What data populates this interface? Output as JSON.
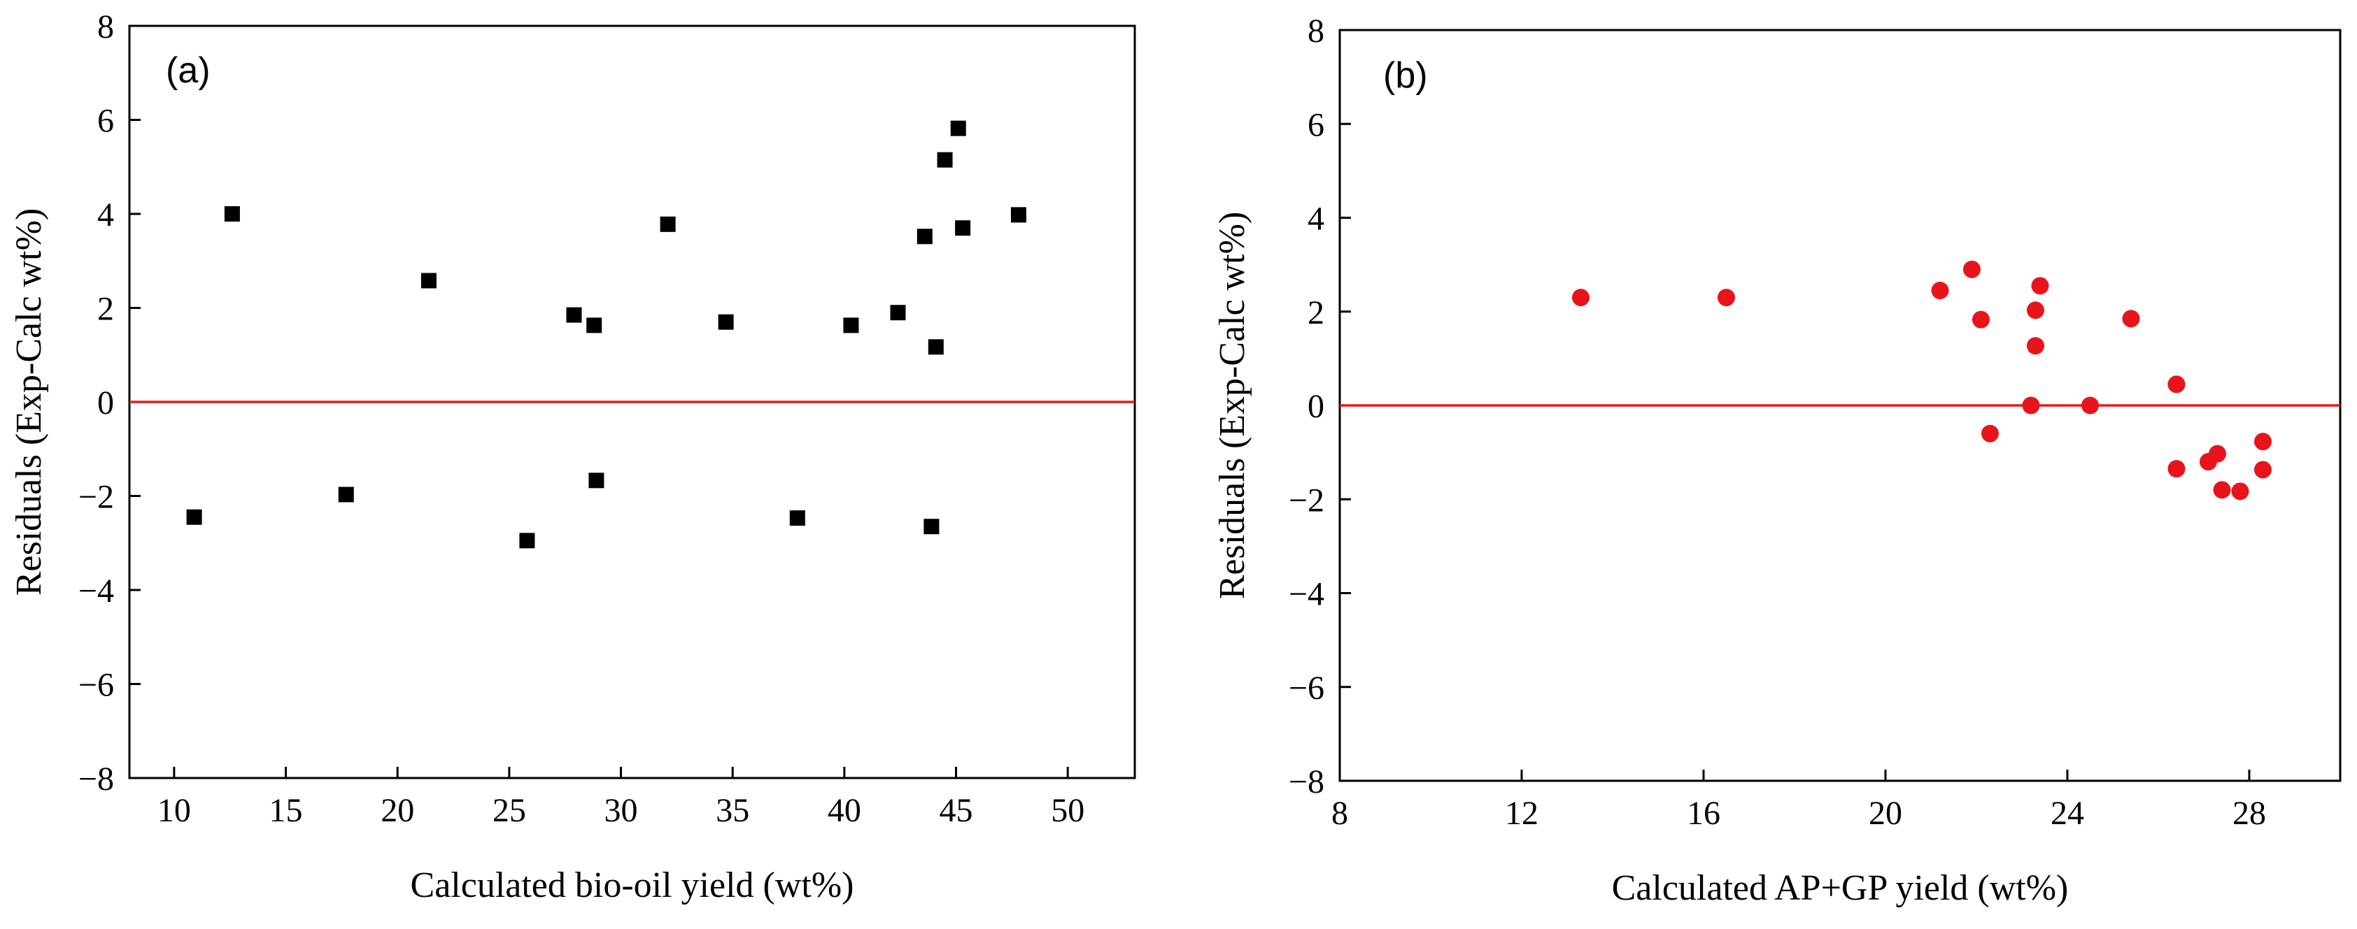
{
  "chart_data": [
    {
      "type": "scatter",
      "panel_label": "(a)",
      "xlabel": "Calculated bio-oil yield  (wt%)",
      "ylabel": "Residuals (Exp-Calc wt%)",
      "xlim": [
        8,
        53
      ],
      "ylim": [
        -8,
        8
      ],
      "xticks": [
        10,
        15,
        20,
        25,
        30,
        35,
        40,
        45,
        50
      ],
      "xtick_labels": [
        "10",
        "15",
        "20",
        "25",
        "30",
        "35",
        "40",
        "45",
        "50"
      ],
      "yticks": [
        -8,
        -6,
        -4,
        -2,
        0,
        2,
        4,
        6,
        8
      ],
      "ytick_labels": [
        "−8",
        "−6",
        "−4",
        "−2",
        "0",
        "2",
        "4",
        "6",
        "8"
      ],
      "reference_line": 0,
      "marker": "square",
      "marker_color": "#000000",
      "line_color": "#e31a1c",
      "x": [
        10.9,
        12.6,
        17.7,
        21.4,
        25.8,
        27.9,
        28.8,
        28.9,
        32.1,
        34.7,
        37.9,
        40.3,
        42.4,
        43.6,
        43.9,
        44.1,
        44.5,
        45.1,
        45.3,
        47.8
      ],
      "y": [
        -2.45,
        4.0,
        -1.97,
        2.58,
        -2.95,
        1.85,
        1.63,
        -1.67,
        3.78,
        1.7,
        -2.47,
        1.63,
        1.9,
        3.52,
        -2.65,
        1.17,
        5.15,
        5.82,
        3.7,
        3.98
      ]
    },
    {
      "type": "scatter",
      "panel_label": "(b)",
      "xlabel": "Calculated AP+GP yield  (wt%)",
      "ylabel": "Residuals (Exp-Calc wt%)",
      "xlim": [
        8,
        30
      ],
      "ylim": [
        -8,
        8
      ],
      "xticks": [
        8,
        12,
        16,
        20,
        24,
        28
      ],
      "xtick_labels": [
        "8",
        "12",
        "16",
        "20",
        "24",
        "28"
      ],
      "yticks": [
        -8,
        -6,
        -4,
        -2,
        0,
        2,
        4,
        6,
        8
      ],
      "ytick_labels": [
        "−8",
        "−6",
        "−4",
        "−2",
        "0",
        "2",
        "4",
        "6",
        "8"
      ],
      "reference_line": 0,
      "marker": "circle",
      "marker_color": "#e8141c",
      "line_color": "#e31a1c",
      "x": [
        13.3,
        16.5,
        21.2,
        21.9,
        22.1,
        22.3,
        23.2,
        23.3,
        23.3,
        23.4,
        24.5,
        25.4,
        26.4,
        26.4,
        27.1,
        27.3,
        27.4,
        27.8,
        28.3,
        28.3
      ],
      "y": [
        2.3,
        2.3,
        2.45,
        2.9,
        1.83,
        -0.6,
        0.0,
        2.03,
        1.27,
        2.55,
        0.0,
        1.85,
        0.45,
        -1.35,
        -1.2,
        -1.03,
        -1.8,
        -1.83,
        -0.77,
        -1.37
      ]
    }
  ]
}
